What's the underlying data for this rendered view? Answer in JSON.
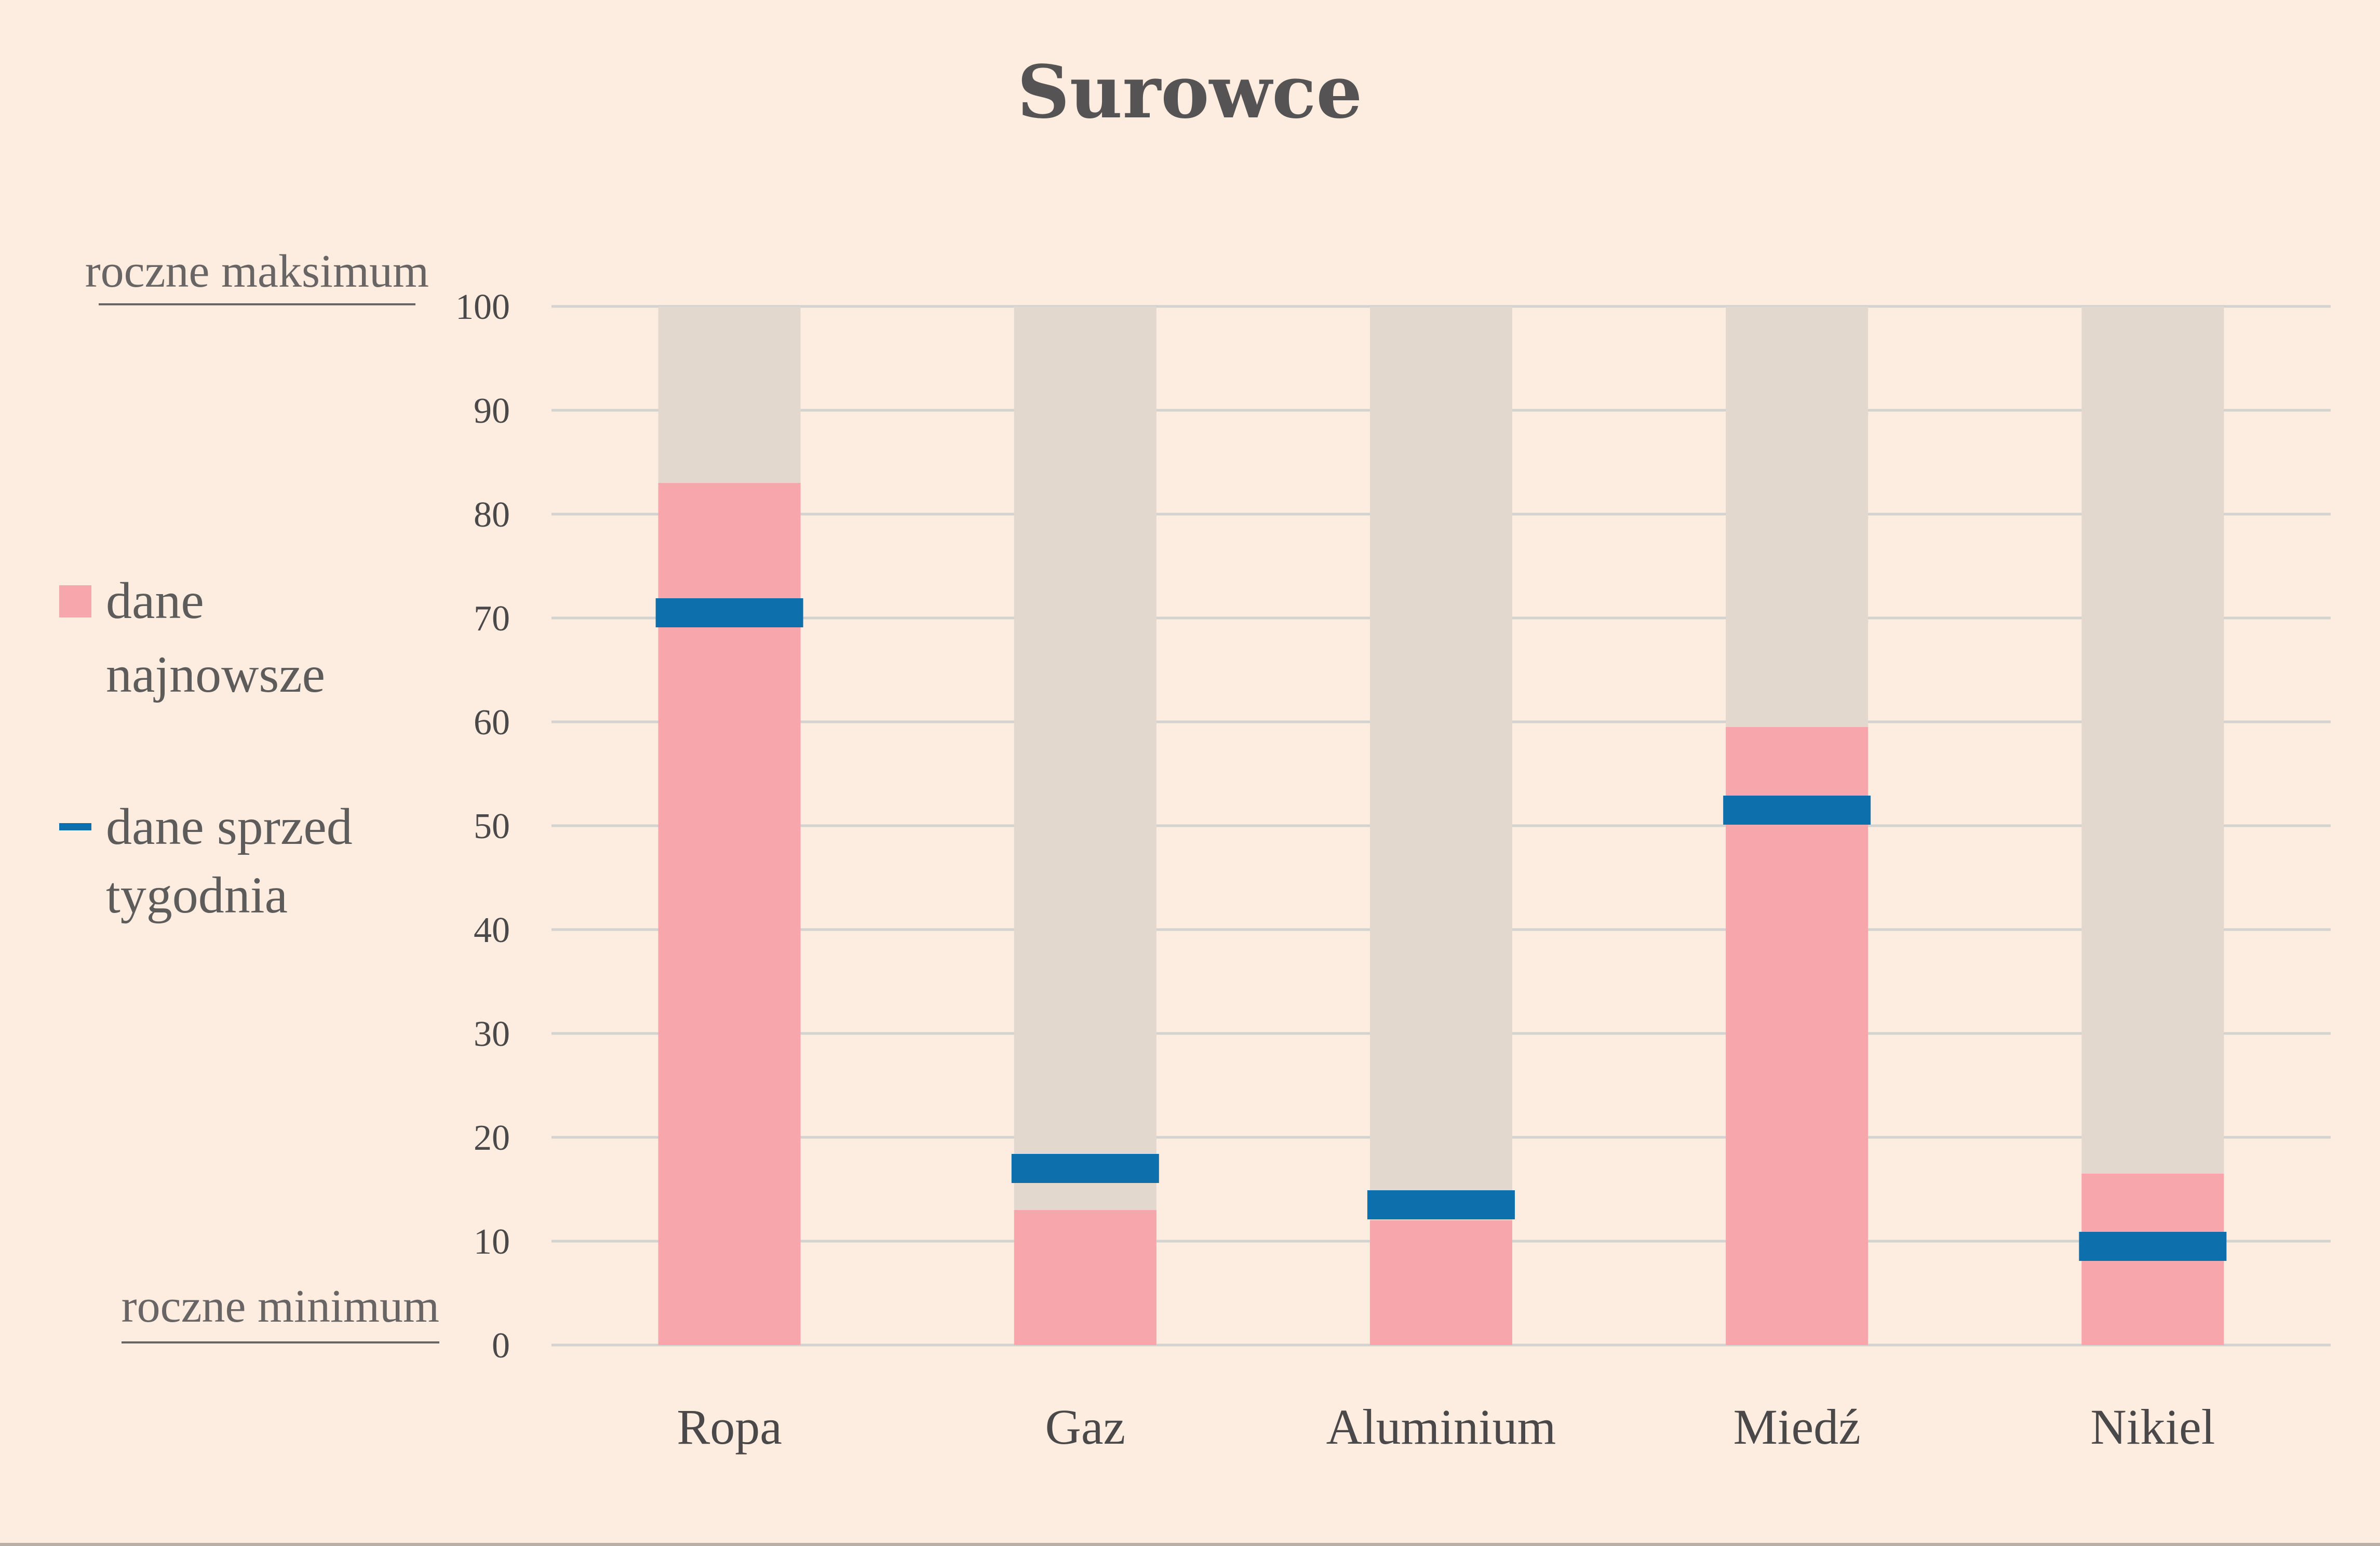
{
  "chart_data": {
    "type": "bar",
    "title": "Surowce",
    "categories": [
      "Ropa",
      "Gaz",
      "Aluminium",
      "Miedź",
      "Nikiel"
    ],
    "series": [
      {
        "name": "dane najnowsze",
        "values": [
          83,
          13,
          12,
          59.5,
          16.5
        ]
      },
      {
        "name": "dane sprzed tygodnia",
        "values": [
          70.5,
          17,
          13.5,
          51.5,
          9.5
        ]
      }
    ],
    "ylim": [
      0,
      100
    ],
    "yticks": [
      0,
      10,
      20,
      30,
      40,
      50,
      60,
      70,
      80,
      90,
      100
    ],
    "grid": true,
    "legend_position": "left",
    "range_labels": {
      "max": "roczne maksimum",
      "min": "roczne minimum"
    },
    "colors": {
      "latest": "#f7a6ab",
      "week_ago": "#0d70ac",
      "range_background": "#e3d8cd",
      "grid": "#d2d2d2",
      "page_background": "#fcede0"
    }
  },
  "legend": {
    "latest_lines": [
      "dane",
      "najnowsze"
    ],
    "week_ago_lines": [
      "dane sprzed",
      "tygodnia"
    ]
  }
}
